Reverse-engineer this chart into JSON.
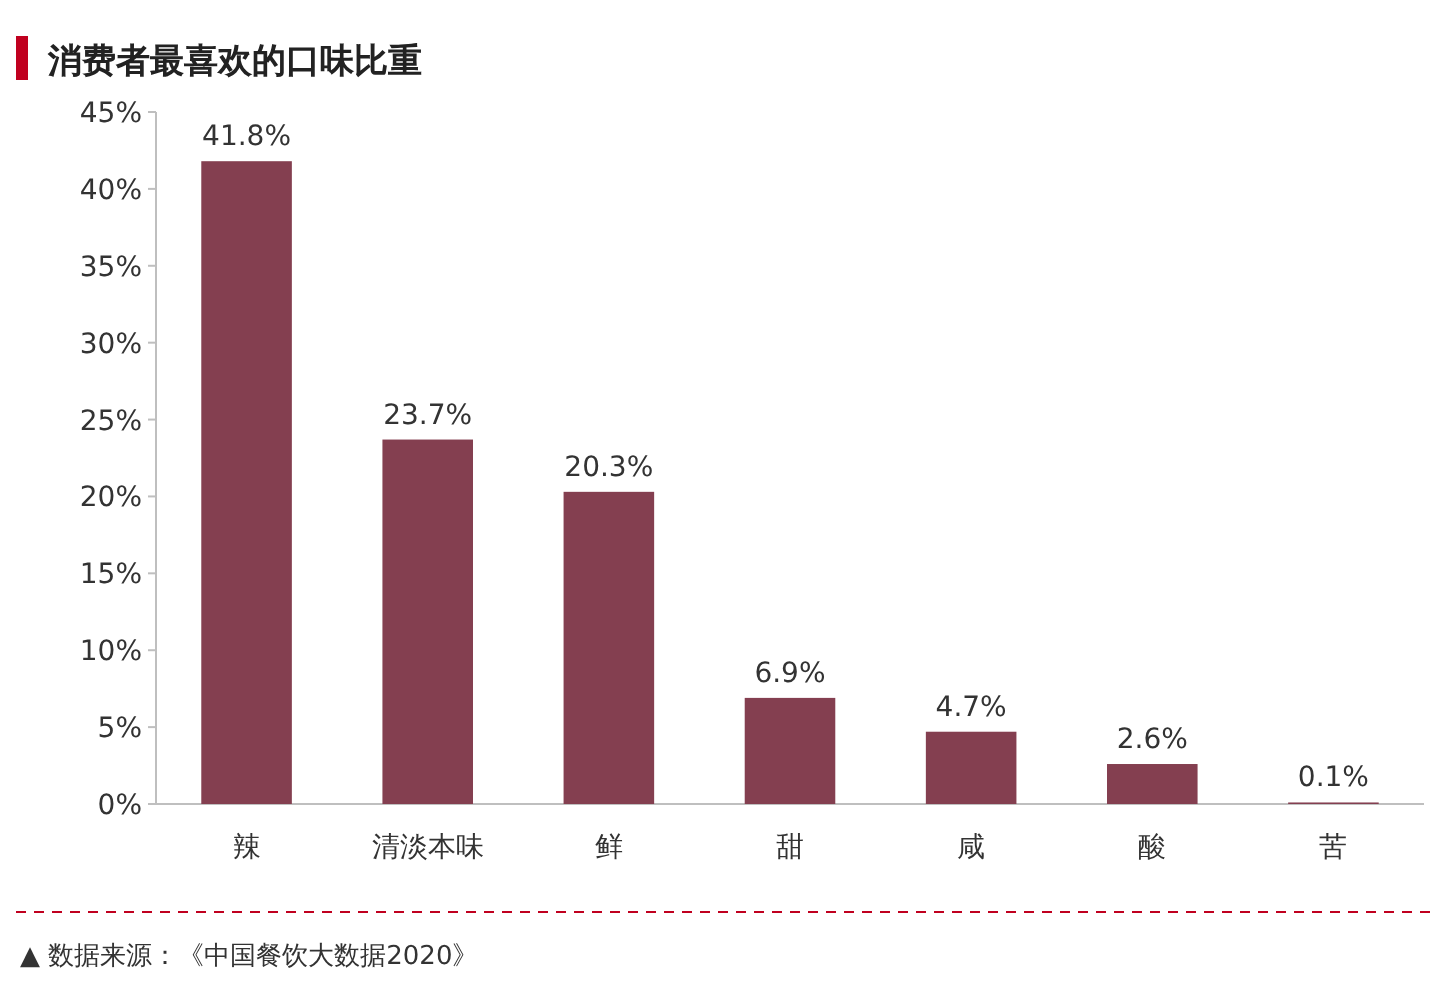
{
  "chart_data": {
    "type": "bar",
    "title": "消费者最喜欢的口味比重",
    "categories": [
      "辣",
      "清淡本味",
      "鲜",
      "甜",
      "咸",
      "酸",
      "苦"
    ],
    "values": [
      41.8,
      23.7,
      20.3,
      6.9,
      4.7,
      2.6,
      0.1
    ],
    "value_labels": [
      "41.8%",
      "23.7%",
      "20.3%",
      "6.9%",
      "4.7%",
      "2.6%",
      "0.1%"
    ],
    "color": "#843f50",
    "ylim": [
      0,
      45
    ],
    "yticks": [
      {
        "value": 0,
        "label": "0%"
      },
      {
        "value": 5,
        "label": "5%"
      },
      {
        "value": 10,
        "label": "10%"
      },
      {
        "value": 15,
        "label": "15%"
      },
      {
        "value": 20,
        "label": "20%"
      },
      {
        "value": 25,
        "label": "25%"
      },
      {
        "value": 30,
        "label": "30%"
      },
      {
        "value": 35,
        "label": "35%"
      },
      {
        "value": 40,
        "label": "40%"
      },
      {
        "value": 45,
        "label": "45%"
      }
    ],
    "annotations": [
      "▲ 数据来源：《中国餐饮大数据2020》"
    ]
  }
}
